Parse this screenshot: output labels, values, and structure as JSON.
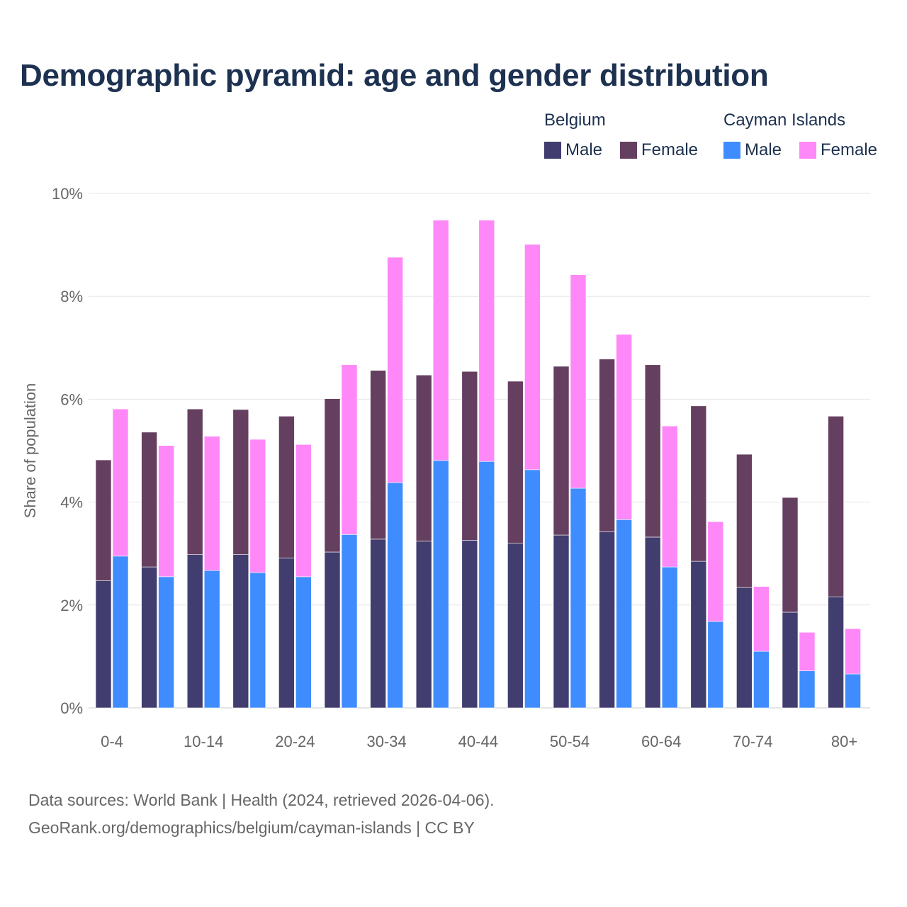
{
  "chart_data": {
    "type": "bar",
    "title": "Demographic pyramid: age and gender distribution",
    "ylabel": "Share of population",
    "xlabel": "",
    "ylim": [
      0,
      10
    ],
    "yticks": [
      "0%",
      "2%",
      "4%",
      "6%",
      "8%",
      "10%"
    ],
    "ytick_values": [
      0,
      2,
      4,
      6,
      8,
      10
    ],
    "grid": true,
    "stacked": true,
    "legend_placement": "top-right",
    "categories": [
      "0-4",
      "5-9",
      "10-14",
      "15-19",
      "20-24",
      "25-29",
      "30-34",
      "35-39",
      "40-44",
      "45-49",
      "50-54",
      "55-59",
      "60-64",
      "65-69",
      "70-74",
      "75-79",
      "80+"
    ],
    "xtick_labels_shown": [
      "0-4",
      "10-14",
      "20-24",
      "30-34",
      "40-44",
      "50-54",
      "60-64",
      "70-74",
      "80+"
    ],
    "countries": [
      {
        "name": "Belgium",
        "series": [
          {
            "name": "Male",
            "color": "#413d6f",
            "values": [
              2.47,
              2.74,
              2.98,
              2.98,
              2.91,
              3.03,
              3.28,
              3.24,
              3.26,
              3.2,
              3.36,
              3.42,
              3.32,
              2.85,
              2.34,
              1.86,
              2.16
            ]
          },
          {
            "name": "Female",
            "color": "#653f60",
            "values": [
              2.35,
              2.62,
              2.83,
              2.82,
              2.76,
              2.98,
              3.28,
              3.23,
              3.28,
              3.15,
              3.28,
              3.36,
              3.35,
              3.02,
              2.59,
              2.23,
              3.51
            ]
          }
        ]
      },
      {
        "name": "Cayman Islands",
        "series": [
          {
            "name": "Male",
            "color": "#3f8cff",
            "values": [
              2.95,
              2.55,
              2.67,
              2.63,
              2.55,
              3.37,
              4.38,
              4.81,
              4.79,
              4.63,
              4.27,
              3.66,
              2.74,
              1.68,
              1.1,
              0.72,
              0.66
            ]
          },
          {
            "name": "Female",
            "color": "#ff88f8",
            "values": [
              2.86,
              2.55,
              2.61,
              2.59,
              2.57,
              3.3,
              4.38,
              4.67,
              4.69,
              4.38,
              4.15,
              3.6,
              2.74,
              1.94,
              1.26,
              0.75,
              0.88
            ]
          }
        ]
      }
    ]
  },
  "footer": {
    "line1": "Data sources: World Bank | Health (2024, retrieved 2026-04-06).",
    "line2": "GeoRank.org/demographics/belgium/cayman-islands | CC BY"
  }
}
